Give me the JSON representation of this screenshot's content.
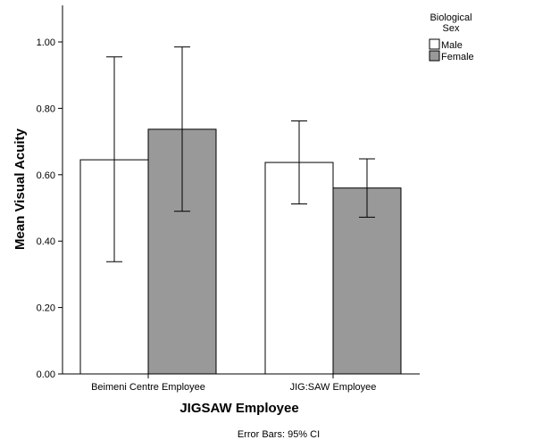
{
  "chart_data": {
    "type": "bar",
    "categories": [
      "Beimeni Centre Employee",
      "JIG:SAW Employee"
    ],
    "series": [
      {
        "name": "Male",
        "color": "#ffffff",
        "values": [
          0.645,
          0.637
        ],
        "ci_low": [
          0.338,
          0.512
        ],
        "ci_high": [
          0.955,
          0.762
        ]
      },
      {
        "name": "Female",
        "color": "#999999",
        "values": [
          0.737,
          0.56
        ],
        "ci_low": [
          0.49,
          0.472
        ],
        "ci_high": [
          0.985,
          0.648
        ]
      }
    ],
    "xlabel": "JIGSAW Employee",
    "ylabel": "Mean Visual Acuity",
    "ylim": [
      0,
      1.1
    ],
    "yticks": [
      "0.00",
      "0.20",
      "0.40",
      "0.60",
      "0.80",
      "1.00"
    ],
    "legend": {
      "title_line1": "Biological",
      "title_line2": "Sex",
      "position": "top-right"
    },
    "footnote": "Error Bars: 95% CI",
    "grid": false
  }
}
